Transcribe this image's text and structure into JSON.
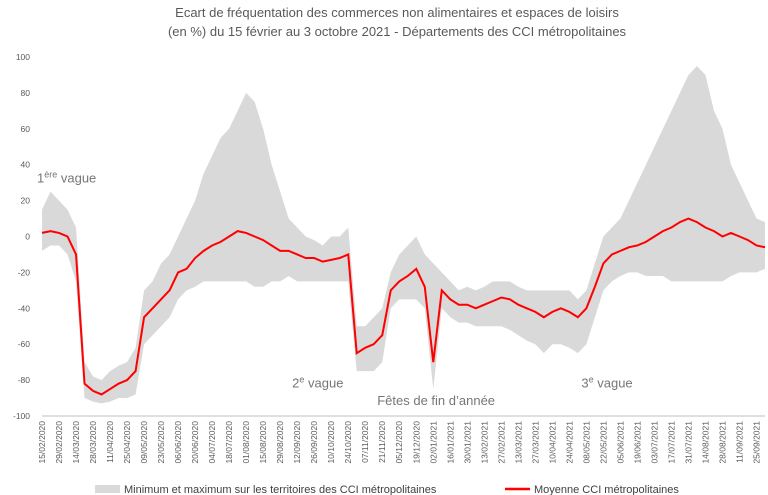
{
  "chart_data": {
    "type": "band-line",
    "title": [
      "Ecart de fréquentation des commerces non alimentaires et espaces de loisirs",
      "(en %) du 15 février au 3 octobre 2021 - Départements des CCI métropolitaines"
    ],
    "categories": [
      "15/02/2020",
      null,
      "29/02/2020",
      null,
      "14/03/2020",
      null,
      "28/03/2020",
      null,
      "11/04/2020",
      null,
      "25/04/2020",
      null,
      "09/05/2020",
      null,
      "23/05/2020",
      null,
      "06/06/2020",
      null,
      "20/06/2020",
      null,
      "04/07/2020",
      null,
      "18/07/2020",
      null,
      "01/08/2020",
      null,
      "15/08/2020",
      null,
      "29/08/2020",
      null,
      "12/09/2020",
      null,
      "26/09/2020",
      null,
      "10/10/2020",
      null,
      "24/10/2020",
      null,
      "07/11/2020",
      null,
      "21/11/2020",
      null,
      "05/12/2020",
      null,
      "19/12/2020",
      null,
      "02/01/2021",
      null,
      "16/01/2021",
      null,
      "30/01/2021",
      null,
      "13/02/2021",
      null,
      "27/02/2021",
      null,
      "13/03/2021",
      null,
      "27/03/2021",
      null,
      "10/04/2021",
      null,
      "24/04/2021",
      null,
      "08/05/2021",
      null,
      "22/05/2021",
      null,
      "05/06/2021",
      null,
      "19/06/2021",
      null,
      "03/07/2021",
      null,
      "17/07/2021",
      null,
      "31/07/2021",
      null,
      "14/08/2021",
      null,
      "28/08/2021",
      null,
      "11/09/2021",
      null,
      "25/09/2021",
      null
    ],
    "series": [
      {
        "name": "Minimum et maximum sur les territoires des CCI métropolitaines",
        "color": "#d9d9d9",
        "values": [
          15,
          25,
          20,
          15,
          5,
          -70,
          -78,
          -80,
          -75,
          -72,
          -70,
          -62,
          -30,
          -25,
          -15,
          -10,
          0,
          10,
          20,
          35,
          45,
          55,
          60,
          70,
          80,
          75,
          60,
          40,
          25,
          10,
          5,
          0,
          -2,
          -5,
          0,
          0,
          5,
          -50,
          -50,
          -45,
          -40,
          -20,
          -10,
          -5,
          0,
          -10,
          -15,
          -20,
          -25,
          -30,
          -28,
          -30,
          -28,
          -25,
          -25,
          -25,
          -28,
          -30,
          -30,
          -30,
          -30,
          -30,
          -30,
          -35,
          -30,
          -15,
          0,
          5,
          10,
          20,
          30,
          40,
          50,
          60,
          70,
          80,
          90,
          95,
          90,
          70,
          60,
          40,
          30,
          20,
          10,
          8
        ],
        "lower": [
          -8,
          -5,
          -5,
          -10,
          -25,
          -90,
          -92,
          -93,
          -92,
          -90,
          -90,
          -88,
          -60,
          -55,
          -50,
          -45,
          -35,
          -30,
          -28,
          -25,
          -25,
          -25,
          -25,
          -25,
          -25,
          -28,
          -28,
          -25,
          -25,
          -22,
          -25,
          -25,
          -25,
          -25,
          -25,
          -25,
          -25,
          -75,
          -75,
          -75,
          -70,
          -40,
          -35,
          -35,
          -35,
          -40,
          -85,
          -40,
          -45,
          -48,
          -48,
          -50,
          -50,
          -50,
          -50,
          -52,
          -55,
          -58,
          -60,
          -65,
          -60,
          -60,
          -62,
          -65,
          -60,
          -45,
          -30,
          -25,
          -22,
          -20,
          -20,
          -22,
          -22,
          -22,
          -25,
          -25,
          -25,
          -25,
          -25,
          -25,
          -25,
          -22,
          -20,
          -20,
          -20,
          -18
        ]
      },
      {
        "name": "Moyenne CCI métropolitaines",
        "color": "#ff0000",
        "values": [
          2,
          3,
          2,
          0,
          -10,
          -82,
          -86,
          -88,
          -85,
          -82,
          -80,
          -75,
          -45,
          -40,
          -35,
          -30,
          -20,
          -18,
          -12,
          -8,
          -5,
          -3,
          0,
          3,
          2,
          0,
          -2,
          -5,
          -8,
          -8,
          -10,
          -12,
          -12,
          -14,
          -13,
          -12,
          -10,
          -65,
          -62,
          -60,
          -55,
          -30,
          -25,
          -22,
          -18,
          -28,
          -70,
          -30,
          -35,
          -38,
          -38,
          -40,
          -38,
          -36,
          -34,
          -35,
          -38,
          -40,
          -42,
          -45,
          -42,
          -40,
          -42,
          -45,
          -40,
          -28,
          -15,
          -10,
          -8,
          -6,
          -5,
          -3,
          0,
          3,
          5,
          8,
          10,
          8,
          5,
          3,
          0,
          2,
          0,
          -2,
          -5,
          -6
        ]
      }
    ],
    "ylim": [
      -100,
      100
    ],
    "yticks": [
      -100,
      -80,
      -60,
      -40,
      -20,
      0,
      20,
      40,
      60,
      80,
      100
    ],
    "grid": false,
    "annotations": [
      {
        "parts": [
          "1",
          "ère",
          " vague"
        ],
        "x": 0,
        "y": 30
      },
      {
        "parts": [
          "2",
          "e",
          " vague"
        ],
        "x": 30,
        "y": -84
      },
      {
        "parts": [
          "3",
          "e",
          " vague"
        ],
        "x": 64,
        "y": -84
      },
      {
        "parts": [
          "Fêtes de fin d’année"
        ],
        "x": 40,
        "y": -94
      }
    ]
  }
}
